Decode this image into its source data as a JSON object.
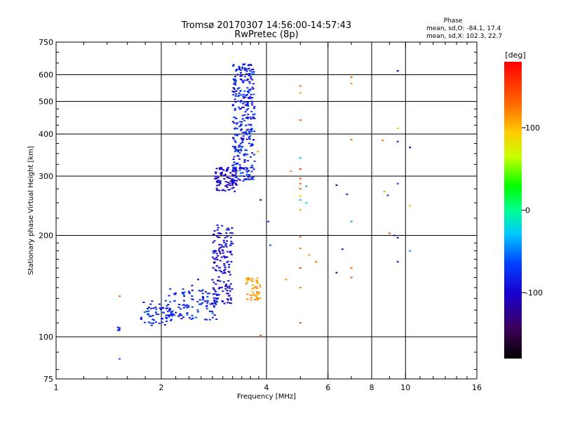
{
  "chart_data": {
    "type": "scatter",
    "title_line1": "Tromsø 20170307 14:56:00-14:57:43",
    "title_line2": "RwPretec (8p)",
    "phase_box": {
      "heading": "Phase",
      "line_O": "mean, sd,O: -84.1, 17.4",
      "line_X": "mean, sd,X: 102.3, 22.7"
    },
    "xlabel": "Frequency [MHz]",
    "ylabel": "Stationary phase Virtual Height [km]",
    "x_scale": "log",
    "y_scale": "log",
    "xlim": [
      1,
      16
    ],
    "ylim": [
      75,
      750
    ],
    "x_ticks": [
      {
        "v": 1,
        "label": "1"
      },
      {
        "v": 2,
        "label": "2"
      },
      {
        "v": 4,
        "label": "4"
      },
      {
        "v": 6,
        "label": "6"
      },
      {
        "v": 8,
        "label": "8"
      },
      {
        "v": 10,
        "label": "10"
      },
      {
        "v": 16,
        "label": "16"
      }
    ],
    "x_grid": [
      2,
      4,
      6,
      8,
      10
    ],
    "y_ticks": [
      {
        "v": 75,
        "label": "75"
      },
      {
        "v": 100,
        "label": "100"
      },
      {
        "v": 200,
        "label": "200"
      },
      {
        "v": 300,
        "label": "300"
      },
      {
        "v": 400,
        "label": "400"
      },
      {
        "v": 500,
        "label": "500"
      },
      {
        "v": 600,
        "label": "600"
      },
      {
        "v": 750,
        "label": "750"
      }
    ],
    "y_grid": [
      100,
      200,
      300,
      400,
      500,
      600
    ],
    "grid": true,
    "colorbar": {
      "label": "[deg]",
      "range": [
        -180,
        180
      ],
      "ticks": [
        {
          "v": 100,
          "label": "100"
        },
        {
          "v": 0,
          "label": "0"
        },
        {
          "v": -100,
          "label": "-100"
        }
      ]
    },
    "clusters": [
      {
        "x_range": [
          1.5,
          1.52
        ],
        "y_range": [
          104,
          107
        ],
        "phase_range": [
          -100,
          -70
        ],
        "count": 6
      },
      {
        "x_range": [
          1.75,
          2.15
        ],
        "y_range": [
          108,
          128
        ],
        "phase_range": [
          -100,
          -60
        ],
        "count": 60
      },
      {
        "x_range": [
          2.1,
          2.9
        ],
        "y_range": [
          112,
          140
        ],
        "phase_range": [
          -100,
          -55
        ],
        "count": 110
      },
      {
        "x_range": [
          2.8,
          3.2
        ],
        "y_range": [
          125,
          215
        ],
        "phase_range": [
          -115,
          -80
        ],
        "count": 150
      },
      {
        "x_range": [
          2.85,
          3.3
        ],
        "y_range": [
          270,
          320
        ],
        "phase_range": [
          -120,
          -85
        ],
        "count": 90
      },
      {
        "x_range": [
          3.2,
          3.7
        ],
        "y_range": [
          290,
          650
        ],
        "phase_range": [
          -110,
          -55
        ],
        "count": 320
      },
      {
        "x_range": [
          3.5,
          3.85
        ],
        "y_range": [
          128,
          150
        ],
        "phase_range": [
          100,
          125
        ],
        "count": 45
      }
    ],
    "points": [
      {
        "x": 1.52,
        "y": 132,
        "phase": 130
      },
      {
        "x": 1.52,
        "y": 86,
        "phase": -60
      },
      {
        "x": 2.02,
        "y": 122,
        "phase": -100
      },
      {
        "x": 2.2,
        "y": 118,
        "phase": -90
      },
      {
        "x": 2.55,
        "y": 148,
        "phase": -90
      },
      {
        "x": 2.45,
        "y": 142,
        "phase": -100
      },
      {
        "x": 3.85,
        "y": 101,
        "phase": 130
      },
      {
        "x": 3.85,
        "y": 255,
        "phase": -120
      },
      {
        "x": 3.78,
        "y": 355,
        "phase": 110
      },
      {
        "x": 4.05,
        "y": 220,
        "phase": -80
      },
      {
        "x": 4.1,
        "y": 187,
        "phase": -60
      },
      {
        "x": 4.55,
        "y": 148,
        "phase": 115
      },
      {
        "x": 4.7,
        "y": 310,
        "phase": 120
      },
      {
        "x": 5.0,
        "y": 556,
        "phase": 125
      },
      {
        "x": 5.0,
        "y": 530,
        "phase": 115
      },
      {
        "x": 5.0,
        "y": 440,
        "phase": 135
      },
      {
        "x": 5.0,
        "y": 340,
        "phase": -20
      },
      {
        "x": 5.0,
        "y": 315,
        "phase": 150
      },
      {
        "x": 5.0,
        "y": 295,
        "phase": 140
      },
      {
        "x": 5.0,
        "y": 285,
        "phase": 130
      },
      {
        "x": 5.0,
        "y": 275,
        "phase": 140
      },
      {
        "x": 5.0,
        "y": 262,
        "phase": 100
      },
      {
        "x": 5.0,
        "y": 255,
        "phase": -30
      },
      {
        "x": 5.0,
        "y": 238,
        "phase": 110
      },
      {
        "x": 5.0,
        "y": 198,
        "phase": 130
      },
      {
        "x": 5.0,
        "y": 183,
        "phase": 120
      },
      {
        "x": 5.0,
        "y": 160,
        "phase": 150
      },
      {
        "x": 5.0,
        "y": 140,
        "phase": 120
      },
      {
        "x": 5.0,
        "y": 110,
        "phase": 140
      },
      {
        "x": 5.2,
        "y": 280,
        "phase": -40
      },
      {
        "x": 5.2,
        "y": 250,
        "phase": -10
      },
      {
        "x": 5.3,
        "y": 175,
        "phase": 110
      },
      {
        "x": 5.55,
        "y": 167,
        "phase": 130
      },
      {
        "x": 6.35,
        "y": 282,
        "phase": -120
      },
      {
        "x": 6.35,
        "y": 155,
        "phase": -100
      },
      {
        "x": 6.6,
        "y": 182,
        "phase": -80
      },
      {
        "x": 6.8,
        "y": 265,
        "phase": -80
      },
      {
        "x": 7.0,
        "y": 590,
        "phase": 130
      },
      {
        "x": 7.0,
        "y": 565,
        "phase": 120
      },
      {
        "x": 7.0,
        "y": 385,
        "phase": 130
      },
      {
        "x": 7.0,
        "y": 220,
        "phase": -40
      },
      {
        "x": 7.0,
        "y": 160,
        "phase": 130
      },
      {
        "x": 7.0,
        "y": 150,
        "phase": 140
      },
      {
        "x": 8.6,
        "y": 383,
        "phase": 125
      },
      {
        "x": 8.7,
        "y": 270,
        "phase": 110
      },
      {
        "x": 8.9,
        "y": 263,
        "phase": -80
      },
      {
        "x": 9.0,
        "y": 203,
        "phase": 140
      },
      {
        "x": 9.3,
        "y": 200,
        "phase": -120
      },
      {
        "x": 9.5,
        "y": 616,
        "phase": -100
      },
      {
        "x": 9.5,
        "y": 416,
        "phase": 100
      },
      {
        "x": 9.5,
        "y": 380,
        "phase": -80
      },
      {
        "x": 9.5,
        "y": 285,
        "phase": -60
      },
      {
        "x": 9.5,
        "y": 197,
        "phase": -110
      },
      {
        "x": 9.5,
        "y": 167,
        "phase": -80
      },
      {
        "x": 10.3,
        "y": 365,
        "phase": -110
      },
      {
        "x": 10.3,
        "y": 245,
        "phase": 100
      },
      {
        "x": 10.3,
        "y": 180,
        "phase": -40
      }
    ]
  }
}
